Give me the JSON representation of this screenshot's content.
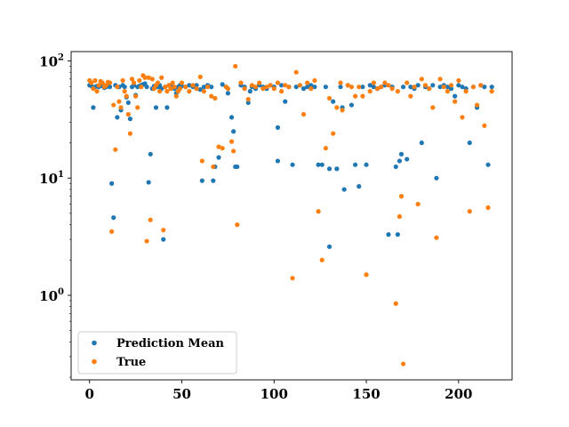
{
  "chart_data": {
    "type": "scatter",
    "title": "",
    "xlabel": "",
    "ylabel": "",
    "yscale": "log",
    "xlim": [
      -10,
      229
    ],
    "ylim": [
      0.19,
      120
    ],
    "x_ticks": [
      0,
      50,
      100,
      150,
      200
    ],
    "y_ticks": [
      {
        "value": 1,
        "mantissa": "10",
        "exponent": "0"
      },
      {
        "value": 10,
        "mantissa": "10",
        "exponent": "1"
      },
      {
        "value": 100,
        "mantissa": "10",
        "exponent": "2"
      }
    ],
    "grid": false,
    "legend": "lower-left",
    "series": [
      {
        "name": "Prediction Mean",
        "color": "#1f77b4",
        "points": [
          [
            0,
            62
          ],
          [
            1,
            61
          ],
          [
            2,
            40
          ],
          [
            3,
            60
          ],
          [
            4,
            61
          ],
          [
            5,
            60
          ],
          [
            6,
            62
          ],
          [
            7,
            61
          ],
          [
            8,
            59
          ],
          [
            9,
            60
          ],
          [
            10,
            63
          ],
          [
            11,
            60
          ],
          [
            12,
            9
          ],
          [
            13,
            4.6
          ],
          [
            14,
            62
          ],
          [
            15,
            33
          ],
          [
            16,
            60
          ],
          [
            17,
            38
          ],
          [
            18,
            62
          ],
          [
            19,
            60
          ],
          [
            20,
            49
          ],
          [
            21,
            44
          ],
          [
            22,
            32
          ],
          [
            23,
            60
          ],
          [
            24,
            62
          ],
          [
            25,
            51
          ],
          [
            26,
            60
          ],
          [
            27,
            61
          ],
          [
            28,
            62
          ],
          [
            29,
            63
          ],
          [
            30,
            64
          ],
          [
            31,
            60
          ],
          [
            32,
            9.2
          ],
          [
            33,
            16
          ],
          [
            34,
            58
          ],
          [
            35,
            61
          ],
          [
            36,
            40
          ],
          [
            37,
            60
          ],
          [
            38,
            62
          ],
          [
            39,
            58
          ],
          [
            40,
            3.0
          ],
          [
            41,
            60
          ],
          [
            42,
            40
          ],
          [
            43,
            62
          ],
          [
            44,
            60
          ],
          [
            45,
            61
          ],
          [
            46,
            58
          ],
          [
            47,
            53
          ],
          [
            48,
            60
          ],
          [
            49,
            62
          ],
          [
            50,
            61
          ],
          [
            52,
            60
          ],
          [
            54,
            62
          ],
          [
            56,
            60
          ],
          [
            58,
            62
          ],
          [
            60,
            57
          ],
          [
            61,
            9.5
          ],
          [
            62,
            60
          ],
          [
            64,
            62
          ],
          [
            66,
            60
          ],
          [
            67,
            9.5
          ],
          [
            68,
            12.5
          ],
          [
            70,
            15
          ],
          [
            72,
            63
          ],
          [
            74,
            60
          ],
          [
            75,
            53
          ],
          [
            77,
            33
          ],
          [
            78,
            25
          ],
          [
            79,
            12.5
          ],
          [
            80,
            12.5
          ],
          [
            82,
            62
          ],
          [
            84,
            60
          ],
          [
            86,
            44
          ],
          [
            87,
            55
          ],
          [
            88,
            60
          ],
          [
            90,
            58
          ],
          [
            92,
            62
          ],
          [
            94,
            60
          ],
          [
            96,
            58
          ],
          [
            98,
            62
          ],
          [
            100,
            60
          ],
          [
            102,
            27
          ],
          [
            102,
            14
          ],
          [
            104,
            62
          ],
          [
            106,
            45
          ],
          [
            108,
            60
          ],
          [
            110,
            13
          ],
          [
            112,
            60
          ],
          [
            114,
            62
          ],
          [
            116,
            58
          ],
          [
            118,
            60
          ],
          [
            120,
            62
          ],
          [
            122,
            60
          ],
          [
            124,
            13
          ],
          [
            126,
            13
          ],
          [
            128,
            60
          ],
          [
            130,
            2.6
          ],
          [
            130,
            12
          ],
          [
            132,
            45
          ],
          [
            134,
            12
          ],
          [
            136,
            60
          ],
          [
            137,
            40
          ],
          [
            138,
            8
          ],
          [
            140,
            62
          ],
          [
            142,
            42
          ],
          [
            144,
            13
          ],
          [
            146,
            8.5
          ],
          [
            148,
            60
          ],
          [
            150,
            13
          ],
          [
            152,
            62
          ],
          [
            154,
            60
          ],
          [
            156,
            58
          ],
          [
            158,
            60
          ],
          [
            160,
            62
          ],
          [
            162,
            3.3
          ],
          [
            164,
            60
          ],
          [
            166,
            12.5
          ],
          [
            167,
            3.3
          ],
          [
            168,
            14
          ],
          [
            169,
            16
          ],
          [
            170,
            60
          ],
          [
            172,
            14.5
          ],
          [
            174,
            60
          ],
          [
            176,
            58
          ],
          [
            178,
            62
          ],
          [
            180,
            20
          ],
          [
            182,
            60
          ],
          [
            184,
            58
          ],
          [
            186,
            62
          ],
          [
            188,
            10
          ],
          [
            190,
            60
          ],
          [
            192,
            62
          ],
          [
            194,
            60
          ],
          [
            196,
            58
          ],
          [
            198,
            50
          ],
          [
            200,
            62
          ],
          [
            202,
            60
          ],
          [
            204,
            58
          ],
          [
            206,
            20
          ],
          [
            208,
            60
          ],
          [
            210,
            40
          ],
          [
            212,
            62
          ],
          [
            214,
            60
          ],
          [
            216,
            13
          ],
          [
            218,
            60
          ]
        ]
      },
      {
        "name": "True",
        "color": "#ff7f0e",
        "points": [
          [
            0,
            68
          ],
          [
            1,
            65
          ],
          [
            2,
            58
          ],
          [
            3,
            68
          ],
          [
            4,
            55
          ],
          [
            5,
            62
          ],
          [
            6,
            67
          ],
          [
            7,
            65
          ],
          [
            8,
            60
          ],
          [
            9,
            62
          ],
          [
            10,
            66
          ],
          [
            11,
            65
          ],
          [
            12,
            3.5
          ],
          [
            13,
            42
          ],
          [
            14,
            17.5
          ],
          [
            15,
            60
          ],
          [
            16,
            45
          ],
          [
            17,
            40
          ],
          [
            18,
            68
          ],
          [
            19,
            55
          ],
          [
            20,
            50
          ],
          [
            21,
            35
          ],
          [
            22,
            24
          ],
          [
            23,
            70
          ],
          [
            24,
            65
          ],
          [
            25,
            50
          ],
          [
            26,
            40
          ],
          [
            27,
            68
          ],
          [
            28,
            60
          ],
          [
            29,
            75
          ],
          [
            30,
            72
          ],
          [
            31,
            2.9
          ],
          [
            32,
            72
          ],
          [
            33,
            4.4
          ],
          [
            34,
            70
          ],
          [
            35,
            58
          ],
          [
            36,
            62
          ],
          [
            37,
            65
          ],
          [
            38,
            55
          ],
          [
            39,
            72
          ],
          [
            40,
            3.6
          ],
          [
            41,
            60
          ],
          [
            42,
            55
          ],
          [
            43,
            62
          ],
          [
            44,
            58
          ],
          [
            45,
            65
          ],
          [
            46,
            60
          ],
          [
            47,
            50
          ],
          [
            48,
            55
          ],
          [
            49,
            58
          ],
          [
            50,
            65
          ],
          [
            52,
            60
          ],
          [
            54,
            55
          ],
          [
            56,
            62
          ],
          [
            58,
            58
          ],
          [
            60,
            73
          ],
          [
            61,
            14
          ],
          [
            62,
            55
          ],
          [
            64,
            60
          ],
          [
            66,
            50
          ],
          [
            67,
            12.5
          ],
          [
            68,
            48
          ],
          [
            70,
            18.5
          ],
          [
            72,
            18
          ],
          [
            74,
            60
          ],
          [
            75,
            58
          ],
          [
            77,
            20.5
          ],
          [
            78,
            17
          ],
          [
            79,
            90
          ],
          [
            80,
            4
          ],
          [
            82,
            65
          ],
          [
            84,
            58
          ],
          [
            86,
            47
          ],
          [
            88,
            62
          ],
          [
            90,
            60
          ],
          [
            92,
            65
          ],
          [
            94,
            58
          ],
          [
            96,
            60
          ],
          [
            98,
            62
          ],
          [
            100,
            58
          ],
          [
            102,
            65
          ],
          [
            104,
            55
          ],
          [
            106,
            62
          ],
          [
            108,
            60
          ],
          [
            110,
            1.4
          ],
          [
            112,
            80
          ],
          [
            114,
            62
          ],
          [
            116,
            35
          ],
          [
            118,
            65
          ],
          [
            120,
            58
          ],
          [
            122,
            68
          ],
          [
            124,
            5.2
          ],
          [
            126,
            2.0
          ],
          [
            128,
            18
          ],
          [
            130,
            48
          ],
          [
            132,
            24
          ],
          [
            134,
            40
          ],
          [
            136,
            65
          ],
          [
            137,
            38
          ],
          [
            140,
            62
          ],
          [
            142,
            60
          ],
          [
            144,
            50
          ],
          [
            146,
            60
          ],
          [
            148,
            50
          ],
          [
            150,
            1.5
          ],
          [
            152,
            55
          ],
          [
            154,
            65
          ],
          [
            156,
            58
          ],
          [
            158,
            60
          ],
          [
            160,
            65
          ],
          [
            162,
            62
          ],
          [
            164,
            58
          ],
          [
            166,
            0.85
          ],
          [
            167,
            55
          ],
          [
            168,
            4.7
          ],
          [
            169,
            7
          ],
          [
            170,
            0.26
          ],
          [
            172,
            65
          ],
          [
            174,
            50
          ],
          [
            176,
            60
          ],
          [
            178,
            6
          ],
          [
            180,
            70
          ],
          [
            182,
            62
          ],
          [
            184,
            58
          ],
          [
            186,
            40
          ],
          [
            188,
            3.1
          ],
          [
            190,
            70
          ],
          [
            192,
            60
          ],
          [
            194,
            55
          ],
          [
            196,
            62
          ],
          [
            198,
            45
          ],
          [
            200,
            68
          ],
          [
            202,
            33
          ],
          [
            204,
            55
          ],
          [
            206,
            5.2
          ],
          [
            208,
            60
          ],
          [
            210,
            42
          ],
          [
            212,
            62
          ],
          [
            214,
            28
          ],
          [
            216,
            5.6
          ],
          [
            218,
            55
          ]
        ]
      }
    ]
  }
}
